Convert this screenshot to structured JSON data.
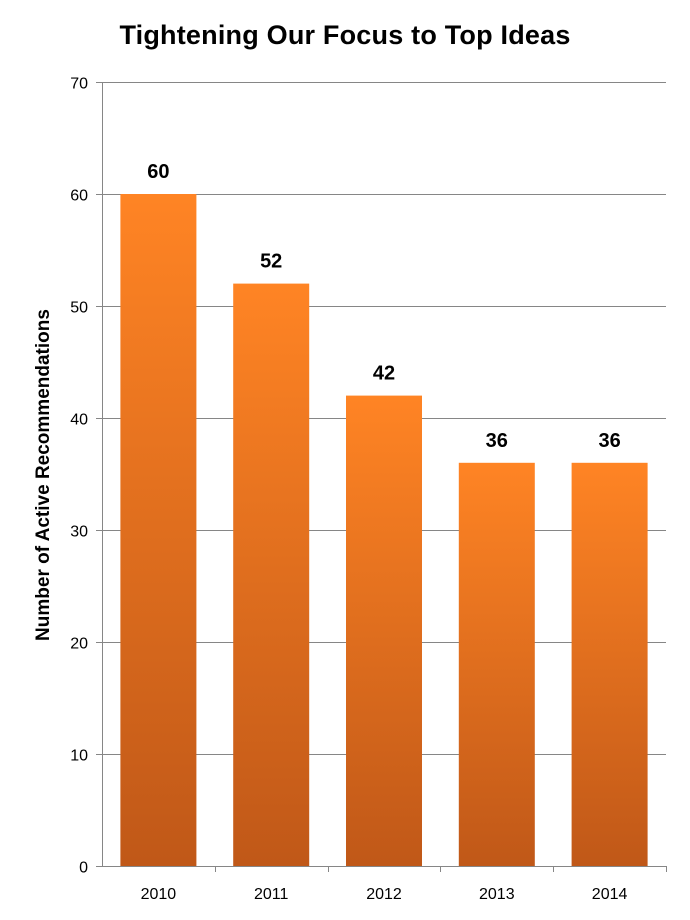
{
  "chart_data": {
    "type": "bar",
    "title": "Tightening Our Focus to Top Ideas",
    "xlabel": "",
    "ylabel": "Number of Active Recommendations",
    "categories": [
      "2010",
      "2011",
      "2012",
      "2013",
      "2014"
    ],
    "values": [
      60,
      52,
      42,
      36,
      36
    ],
    "data_labels": [
      "60",
      "52",
      "42",
      "36",
      "36"
    ],
    "ylim": [
      0,
      70
    ],
    "yticks": [
      0,
      10,
      20,
      30,
      40,
      50,
      60,
      70
    ],
    "ytick_labels": [
      "0",
      "10",
      "20",
      "30",
      "40",
      "50",
      "60",
      "70"
    ],
    "grid": true,
    "legend": "none",
    "colors": {
      "bar_top": "#FF8424",
      "bar_bottom": "#C05818",
      "grid": "#868686",
      "axis": "#868686"
    }
  }
}
